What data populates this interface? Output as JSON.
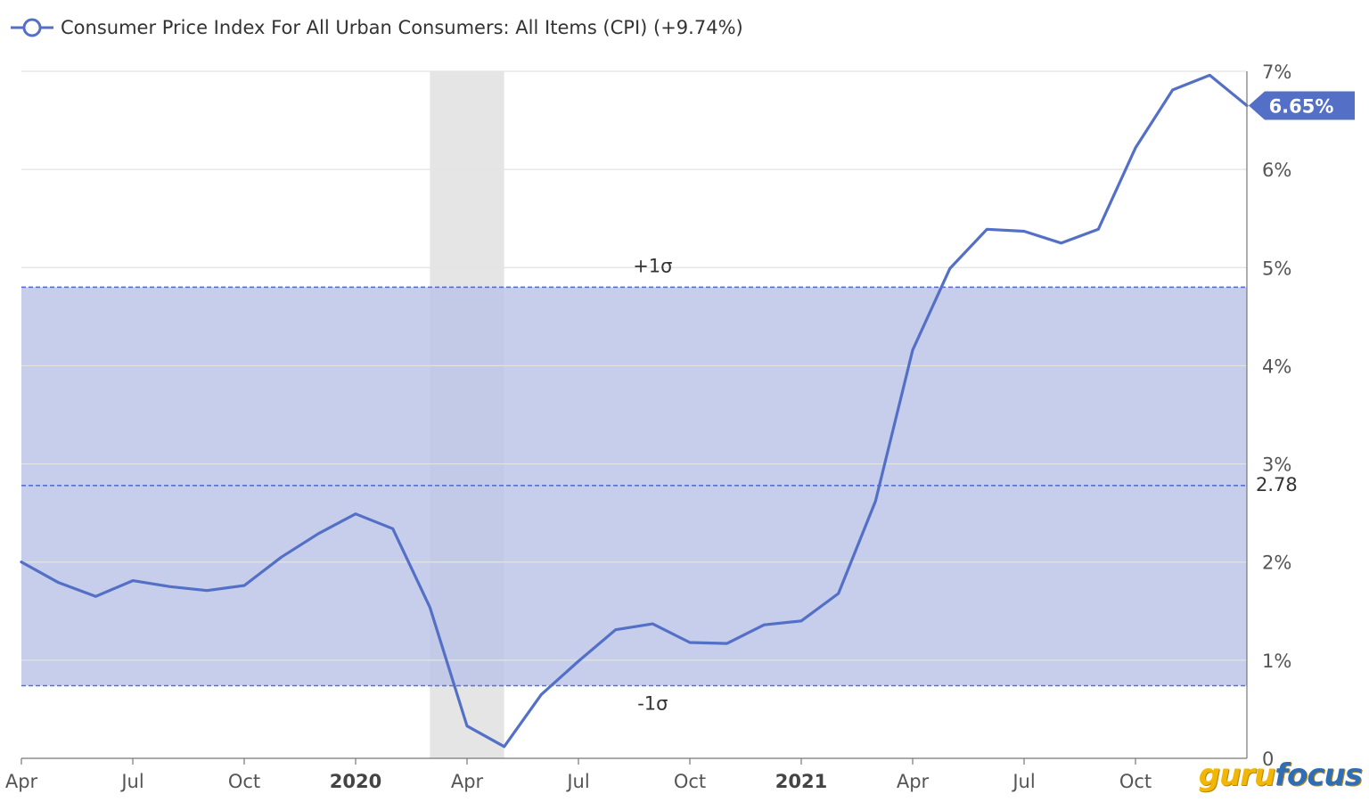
{
  "colors": {
    "line": "#5470c6",
    "band": "#bcc6e9",
    "recession": "#dcdcdc",
    "grid": "#e3e3e3",
    "dashed": "#5a6fd0",
    "badge": "#5470c6"
  },
  "legend": {
    "icon": "circle-line-marker-icon",
    "label": "Consumer Price Index For All Urban Consumers: All Items (CPI) (+9.74%)"
  },
  "watermark": {
    "part1": "guru",
    "part2": "focus"
  },
  "chart_data": {
    "type": "line",
    "title": "",
    "xlabel": "",
    "ylabel": "",
    "ylim": [
      0,
      7
    ],
    "y_axis_position": "right",
    "y_ticks": [
      {
        "value": 0,
        "label": "0"
      },
      {
        "value": 1,
        "label": "1%"
      },
      {
        "value": 2,
        "label": "2%"
      },
      {
        "value": 3,
        "label": "3%"
      },
      {
        "value": 4,
        "label": "4%"
      },
      {
        "value": 5,
        "label": "5%"
      },
      {
        "value": 6,
        "label": "6%"
      },
      {
        "value": 7,
        "label": "7%"
      }
    ],
    "x_ticks": [
      {
        "index": 0,
        "label": "Apr",
        "bold": false
      },
      {
        "index": 3,
        "label": "Jul",
        "bold": false
      },
      {
        "index": 6,
        "label": "Oct",
        "bold": false
      },
      {
        "index": 9,
        "label": "2020",
        "bold": true
      },
      {
        "index": 12,
        "label": "Apr",
        "bold": false
      },
      {
        "index": 15,
        "label": "Jul",
        "bold": false
      },
      {
        "index": 18,
        "label": "Oct",
        "bold": false
      },
      {
        "index": 21,
        "label": "2021",
        "bold": true
      },
      {
        "index": 24,
        "label": "Apr",
        "bold": false
      },
      {
        "index": 27,
        "label": "Jul",
        "bold": false
      },
      {
        "index": 30,
        "label": "Oct",
        "bold": false
      }
    ],
    "grid": true,
    "series": [
      {
        "name": "Consumer Price Index For All Urban Consumers: All Items (CPI)",
        "x": [
          "2019-04",
          "2019-05",
          "2019-06",
          "2019-07",
          "2019-08",
          "2019-09",
          "2019-10",
          "2019-11",
          "2019-12",
          "2020-01",
          "2020-02",
          "2020-03",
          "2020-04",
          "2020-05",
          "2020-06",
          "2020-07",
          "2020-08",
          "2020-09",
          "2020-10",
          "2020-11",
          "2020-12",
          "2021-01",
          "2021-02",
          "2021-03",
          "2021-04",
          "2021-05",
          "2021-06",
          "2021-07",
          "2021-08",
          "2021-09",
          "2021-10",
          "2021-11",
          "2021-12",
          "2022-01"
        ],
        "values": [
          2.0,
          1.79,
          1.65,
          1.81,
          1.75,
          1.71,
          1.76,
          2.05,
          2.29,
          2.49,
          2.34,
          1.54,
          0.33,
          0.12,
          0.65,
          0.99,
          1.31,
          1.37,
          1.18,
          1.17,
          1.36,
          1.4,
          1.68,
          2.62,
          4.16,
          4.99,
          5.39,
          5.37,
          5.25,
          5.39,
          6.22,
          6.81,
          6.96,
          6.65
        ]
      }
    ],
    "recession_shading": {
      "from_index": 11,
      "to_index": 13
    },
    "band": {
      "lower": 0.74,
      "upper": 4.8,
      "mean": 2.78
    },
    "band_labels": {
      "upper": "+1σ",
      "lower": "-1σ",
      "mean": "2.78"
    },
    "last_value_label": "6.65%"
  }
}
